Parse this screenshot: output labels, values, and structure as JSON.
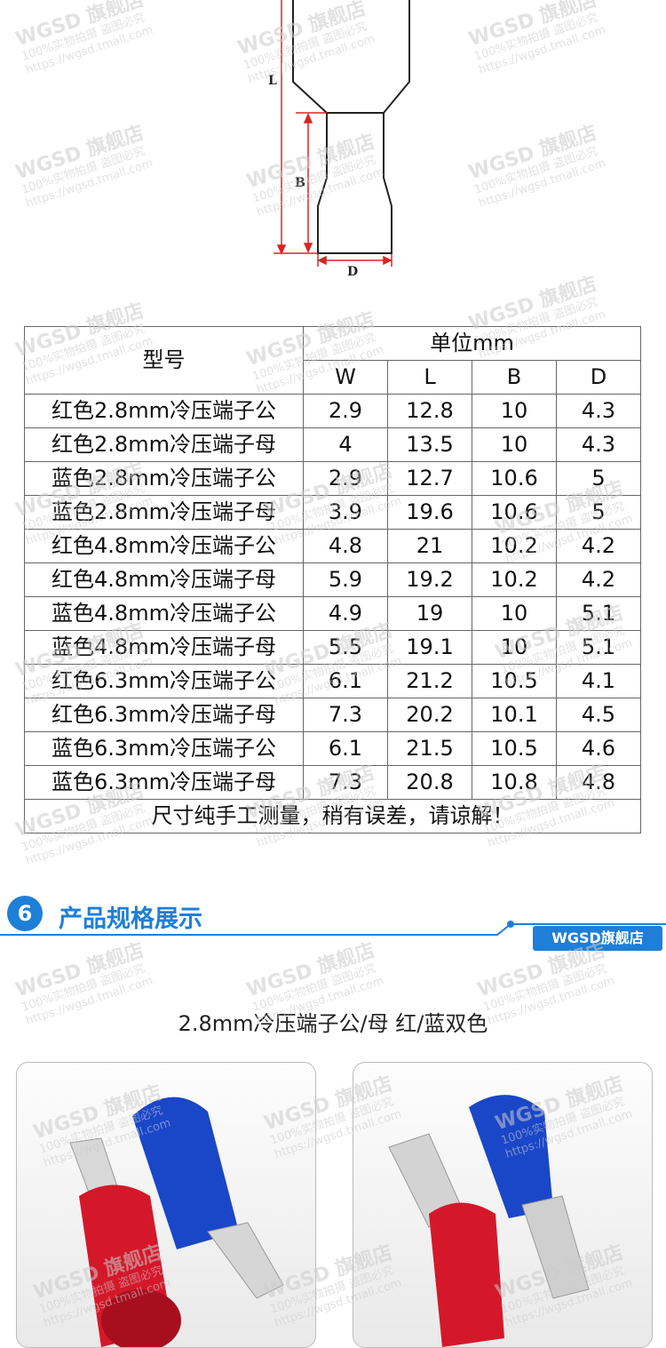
{
  "diagram": {
    "labels": [
      "L",
      "B",
      "D"
    ]
  },
  "table": {
    "model_header": "型号",
    "unit_header": "单位mm",
    "columns": [
      "W",
      "L",
      "B",
      "D"
    ],
    "rows": [
      [
        "红色2.8mm冷压端子公",
        2.9,
        12.8,
        10,
        4.3
      ],
      [
        "红色2.8mm冷压端子母",
        4,
        13.5,
        10,
        4.3
      ],
      [
        "蓝色2.8mm冷压端子公",
        2.9,
        12.7,
        10.6,
        5
      ],
      [
        "蓝色2.8mm冷压端子母",
        3.9,
        19.6,
        10.6,
        5
      ],
      [
        "红色4.8mm冷压端子公",
        4.8,
        21,
        10.2,
        4.2
      ],
      [
        "红色4.8mm冷压端子母",
        5.9,
        19.2,
        10.2,
        4.2
      ],
      [
        "蓝色4.8mm冷压端子公",
        4.9,
        19,
        10,
        5.1
      ],
      [
        "蓝色4.8mm冷压端子母",
        5.5,
        19.1,
        10,
        5.1
      ],
      [
        "红色6.3mm冷压端子公",
        6.1,
        21.2,
        10.5,
        4.1
      ],
      [
        "红色6.3mm冷压端子母",
        7.3,
        20.2,
        10.1,
        4.5
      ],
      [
        "蓝色6.3mm冷压端子公",
        6.1,
        21.5,
        10.5,
        4.6
      ],
      [
        "蓝色6.3mm冷压端子母",
        7.3,
        20.8,
        10.8,
        4.8
      ]
    ],
    "note": "尺寸纯手工测量，稍有误差，请谅解！"
  },
  "section": {
    "number": "6",
    "title": "产品规格展示",
    "badge": "WGSD旗舰店",
    "subtitle": "2.8mm冷压端子公/母 红/蓝双色"
  },
  "watermark": [
    "WGSD 旗舰店",
    "100%实物拍摄 盗图必究",
    "https://wgsd.tmall.com"
  ]
}
